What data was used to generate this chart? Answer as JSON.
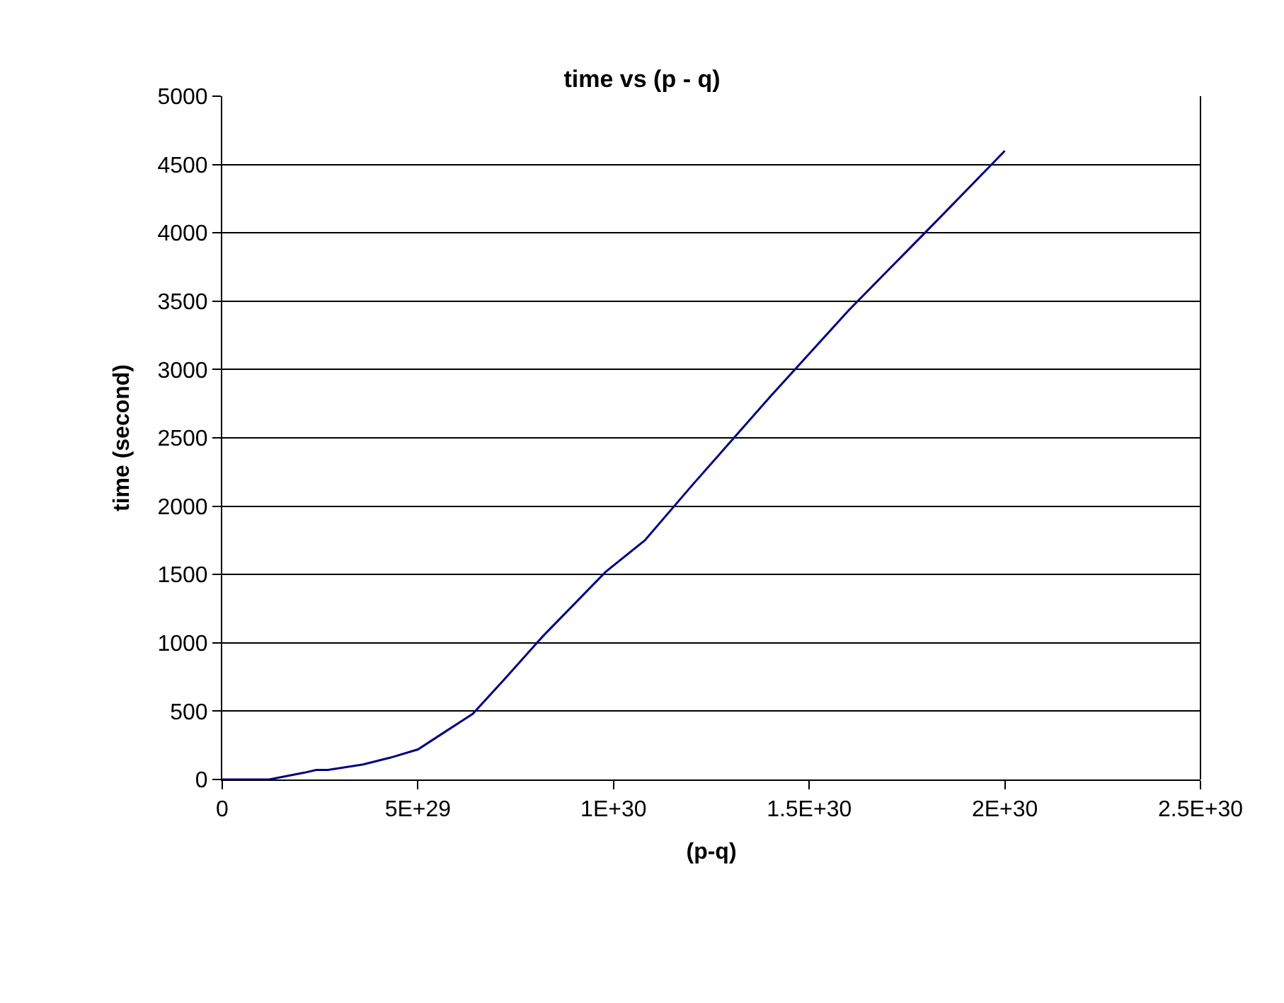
{
  "chart_data": {
    "type": "line",
    "title": "time vs (p - q)",
    "xlabel": "(p-q)",
    "ylabel": "time (second)",
    "x": [
      0,
      1.2e+29,
      2.1e+29,
      2.4e+29,
      2.7e+29,
      3.6e+29,
      4.3e+29,
      5e+29,
      5.7e+29,
      6.4e+29,
      7.2e+29,
      8.2e+29,
      9.8e+29,
      1.08e+30,
      1.2e+30,
      1.4e+30,
      1.6e+30,
      1.83e+30,
      2e+30
    ],
    "series": [
      {
        "color": "#000080",
        "values": [
          0,
          0,
          50,
          70,
          70,
          110,
          160,
          220,
          350,
          480,
          730,
          1050,
          1520,
          1750,
          2150,
          2800,
          3430,
          4100,
          4600
        ]
      }
    ],
    "xlim": [
      0,
      2.5e+30
    ],
    "xticks": [
      0,
      {
        "value": 5e+29,
        "label": "5E+29"
      },
      {
        "value": 1e+30,
        "label": "1E+30"
      },
      {
        "value": 1.5e+30,
        "label": "1.5E+30"
      },
      {
        "value": 2e+30,
        "label": "2E+30"
      },
      {
        "value": 2.5e+30,
        "label": "2.5E+30"
      }
    ],
    "ylim": [
      0,
      5000
    ],
    "yticks": [
      0,
      500,
      1000,
      1500,
      2000,
      2500,
      3000,
      3500,
      4000,
      4500,
      5000
    ],
    "grid": "y",
    "marker": "none",
    "line_style": "solid"
  }
}
